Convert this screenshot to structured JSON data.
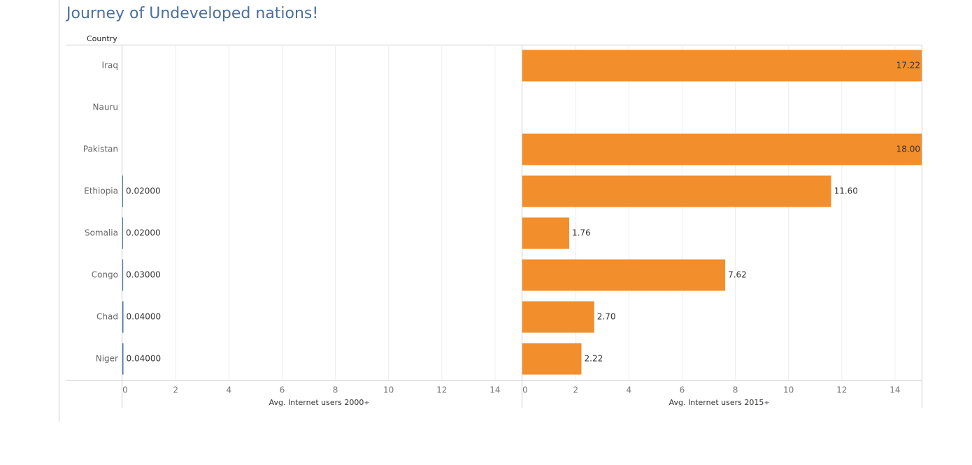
{
  "chart_data": {
    "type": "bar",
    "title": "Journey of Undeveloped nations!",
    "category_label": "Country",
    "categories": [
      "Iraq",
      "Nauru",
      "Pakistan",
      "Ethiopia",
      "Somalia",
      "Congo",
      "Chad",
      "Niger"
    ],
    "series": [
      {
        "name": "Avg. Internet users 2000",
        "color": "#4e79a7",
        "values": [
          null,
          null,
          null,
          0.02,
          0.02,
          0.03,
          0.04,
          0.04
        ],
        "value_labels": [
          null,
          null,
          null,
          "0.02000",
          "0.02000",
          "0.03000",
          "0.04000",
          "0.04000"
        ],
        "xlim": [
          0,
          15
        ],
        "xticks": [
          0,
          2,
          4,
          6,
          8,
          10,
          12,
          14
        ]
      },
      {
        "name": "Avg. Internet users 2015",
        "color": "#f28e2b",
        "values": [
          17.22,
          null,
          18,
          11.6,
          1.76,
          7.62,
          2.7,
          2.22
        ],
        "value_labels": [
          "17.22",
          null,
          "18.00",
          "11.60",
          "1.76",
          "7.62",
          "2.70",
          "2.22"
        ],
        "xlim": [
          0,
          15
        ],
        "xticks": [
          0,
          2,
          4,
          6,
          8,
          10,
          12,
          14
        ]
      }
    ],
    "grid": true
  }
}
